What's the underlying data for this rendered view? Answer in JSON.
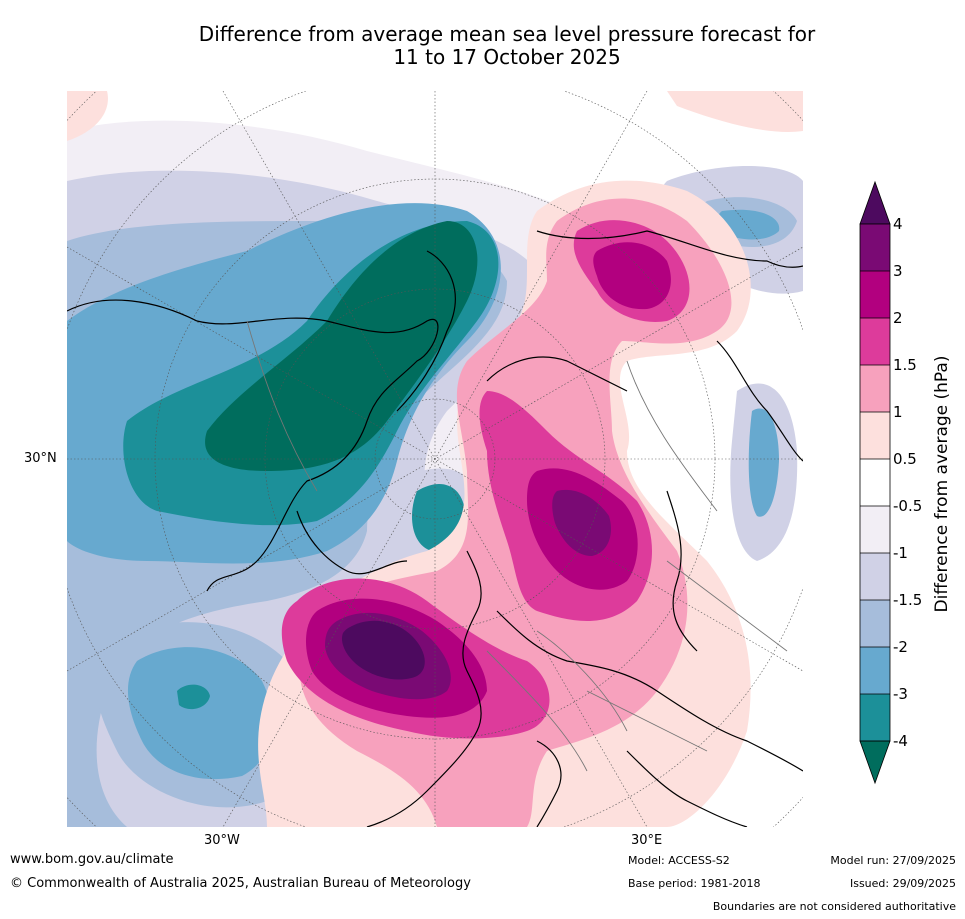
{
  "title_line1": "Difference from average mean sea level pressure forecast for",
  "title_line2": "11 to 17 October 2025",
  "map_labels": {
    "lat_30n": "30°N",
    "lon_30w": "30°W",
    "lon_30e": "30°E"
  },
  "colorbar": {
    "title": "Difference from average (hPa)",
    "levels": [
      "4",
      "3",
      "2",
      "1.5",
      "1",
      "0.5",
      "-0.5",
      "-1",
      "-1.5",
      "-2",
      "-3",
      "-4"
    ],
    "colors": {
      "gt4": "#4d0a5f",
      "3_4": "#7a0a74",
      "2_3": "#b2007f",
      "1.5_2": "#dd3b9b",
      "1_1.5": "#f7a1bd",
      "0.5_1": "#fde0dd",
      "neutral": "#ffffff",
      "m1_m0.5": "#f2eef5",
      "m1.5_m1": "#d0d1e6",
      "m2_m1.5": "#a6bddb",
      "m3_m2": "#67a9cf",
      "m4_m3": "#1c9099",
      "lt_m4": "#006d5d"
    }
  },
  "footer": {
    "website": "www.bom.gov.au/climate",
    "copyright": "© Commonwealth of Australia 2025, Australian Bureau of Meteorology",
    "model": "Model: ACCESS-S2",
    "base_period": "Base period: 1981-2018",
    "model_run": "Model run: 27/09/2025",
    "issued": "Issued: 29/09/2025",
    "disclaimer": "Boundaries are not considered authoritative"
  }
}
